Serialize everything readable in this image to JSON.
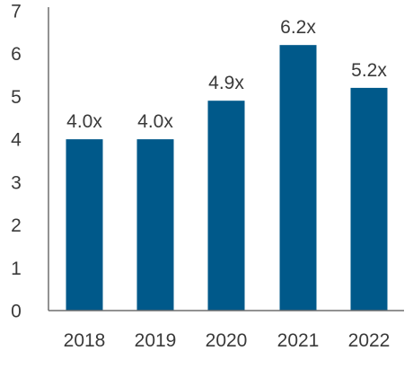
{
  "chart_data": {
    "type": "bar",
    "categories": [
      "2018",
      "2019",
      "2020",
      "2021",
      "2022"
    ],
    "values": [
      4.0,
      4.0,
      4.9,
      6.2,
      5.2
    ],
    "data_labels": [
      "4.0x",
      "4.0x",
      "4.9x",
      "6.2x",
      "5.2x"
    ],
    "y_ticks": [
      "0",
      "1",
      "2",
      "3",
      "4",
      "5",
      "6",
      "7"
    ],
    "ylim": [
      0,
      7
    ],
    "grid": false,
    "legend": "none",
    "bar_color": "#00598a",
    "text_color": "#3a3a3a",
    "axis_color": "#6e6e6e"
  }
}
